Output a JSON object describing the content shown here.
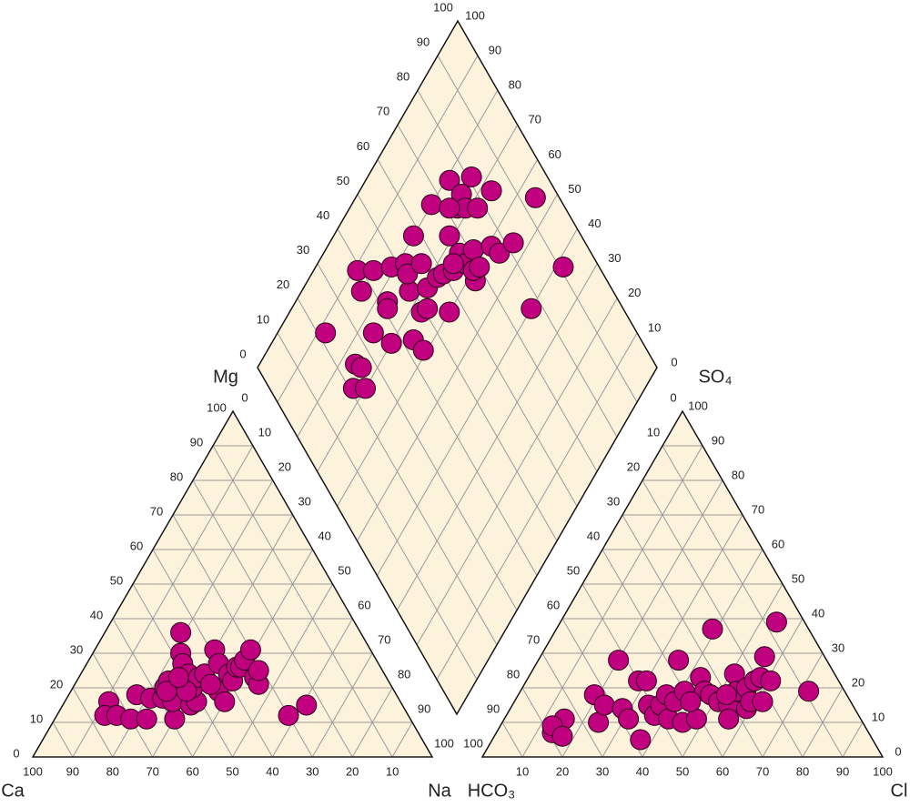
{
  "chart_data": {
    "type": "piper",
    "labels": {
      "ca": "Ca",
      "mg": "Mg",
      "na": "Na",
      "hco3": "HCO₃",
      "so4": "SO₄",
      "cl": "Cl"
    },
    "ticks": [
      0,
      10,
      20,
      30,
      40,
      50,
      60,
      70,
      80,
      90,
      100
    ],
    "grid": true,
    "color": "#c0007f",
    "cations": {
      "points": [
        [
          73,
          16
        ],
        [
          76,
          12
        ],
        [
          73,
          12
        ],
        [
          70,
          11
        ],
        [
          66,
          11
        ],
        [
          65,
          18
        ],
        [
          62,
          17
        ],
        [
          59,
          17
        ],
        [
          57,
          20
        ],
        [
          55,
          22
        ],
        [
          59,
          11
        ],
        [
          57,
          16
        ],
        [
          45,
          36
        ],
        [
          48,
          30
        ],
        [
          49,
          27
        ],
        [
          49,
          24
        ],
        [
          53,
          15
        ],
        [
          51,
          16
        ],
        [
          50,
          20
        ],
        [
          47,
          23
        ],
        [
          45,
          24
        ],
        [
          39,
          31
        ],
        [
          40,
          27
        ],
        [
          44,
          19
        ],
        [
          44,
          16
        ],
        [
          39,
          24
        ],
        [
          39,
          22
        ],
        [
          36,
          26
        ],
        [
          35,
          26
        ],
        [
          33,
          28
        ],
        [
          30,
          31
        ],
        [
          33,
          23
        ],
        [
          33,
          21
        ],
        [
          31,
          25
        ],
        [
          30,
          12
        ],
        [
          24,
          15
        ],
        [
          52,
          19
        ],
        [
          57,
          19
        ],
        [
          52,
          23
        ],
        [
          45,
          21
        ]
      ]
    },
    "anions": {
      "points": [
        [
          14,
          7
        ],
        [
          15,
          11
        ],
        [
          13,
          9
        ],
        [
          17,
          6
        ],
        [
          19,
          18
        ],
        [
          24,
          10
        ],
        [
          23,
          15
        ],
        [
          20,
          28
        ],
        [
          28,
          14
        ],
        [
          31,
          11
        ],
        [
          28,
          22
        ],
        [
          30,
          22
        ],
        [
          37,
          5
        ],
        [
          34,
          15
        ],
        [
          37,
          12
        ],
        [
          37,
          15
        ],
        [
          37,
          18
        ],
        [
          41,
          11
        ],
        [
          40,
          16
        ],
        [
          35,
          28
        ],
        [
          45,
          10
        ],
        [
          41,
          19
        ],
        [
          48,
          11
        ],
        [
          43,
          23
        ],
        [
          46,
          19
        ],
        [
          48,
          18
        ],
        [
          39,
          37
        ],
        [
          51,
          16
        ],
        [
          54,
          15
        ],
        [
          56,
          11
        ],
        [
          51,
          24
        ],
        [
          54,
          19
        ],
        [
          59,
          14
        ],
        [
          56,
          20
        ],
        [
          59,
          16
        ],
        [
          57,
          22
        ],
        [
          58,
          23
        ],
        [
          56,
          29
        ],
        [
          61,
          22
        ],
        [
          62,
          16
        ],
        [
          54,
          39
        ],
        [
          72,
          19
        ],
        [
          44,
          16
        ],
        [
          52,
          18
        ]
      ]
    },
    "diamond": {
      "points": [
        [
          22,
          88
        ],
        [
          39,
          89
        ],
        [
          37,
          85
        ],
        [
          25,
          76
        ],
        [
          26,
          74
        ],
        [
          21,
          73
        ],
        [
          24,
          70
        ],
        [
          43,
          85
        ],
        [
          34,
          76
        ],
        [
          42,
          77
        ],
        [
          41,
          76
        ],
        [
          37,
          70
        ],
        [
          48,
          81
        ],
        [
          52,
          78
        ],
        [
          49,
          73
        ],
        [
          51,
          76
        ],
        [
          58,
          80
        ],
        [
          56,
          74
        ],
        [
          49,
          67
        ],
        [
          54,
          69
        ],
        [
          43,
          65
        ],
        [
          44,
          61
        ],
        [
          51,
          66
        ],
        [
          67,
          80
        ],
        [
          58,
          68
        ],
        [
          56,
          60
        ],
        [
          60,
          67
        ],
        [
          75,
          79
        ],
        [
          67,
          71
        ],
        [
          63,
          65
        ],
        [
          73,
          73
        ],
        [
          67,
          66
        ],
        [
          76,
          74
        ],
        [
          75,
          71
        ],
        [
          67,
          63
        ],
        [
          81,
          74
        ],
        [
          71,
          63
        ],
        [
          67,
          58
        ],
        [
          78,
          68
        ],
        [
          68,
          60
        ],
        [
          70,
          59
        ],
        [
          76,
          59
        ],
        [
          84,
          67
        ],
        [
          77,
          56
        ],
        [
          82,
          54
        ],
        [
          77,
          40
        ],
        [
          94,
          55
        ],
        [
          91,
          38
        ],
        [
          64,
          66
        ],
        [
          71,
          75
        ]
      ]
    }
  }
}
